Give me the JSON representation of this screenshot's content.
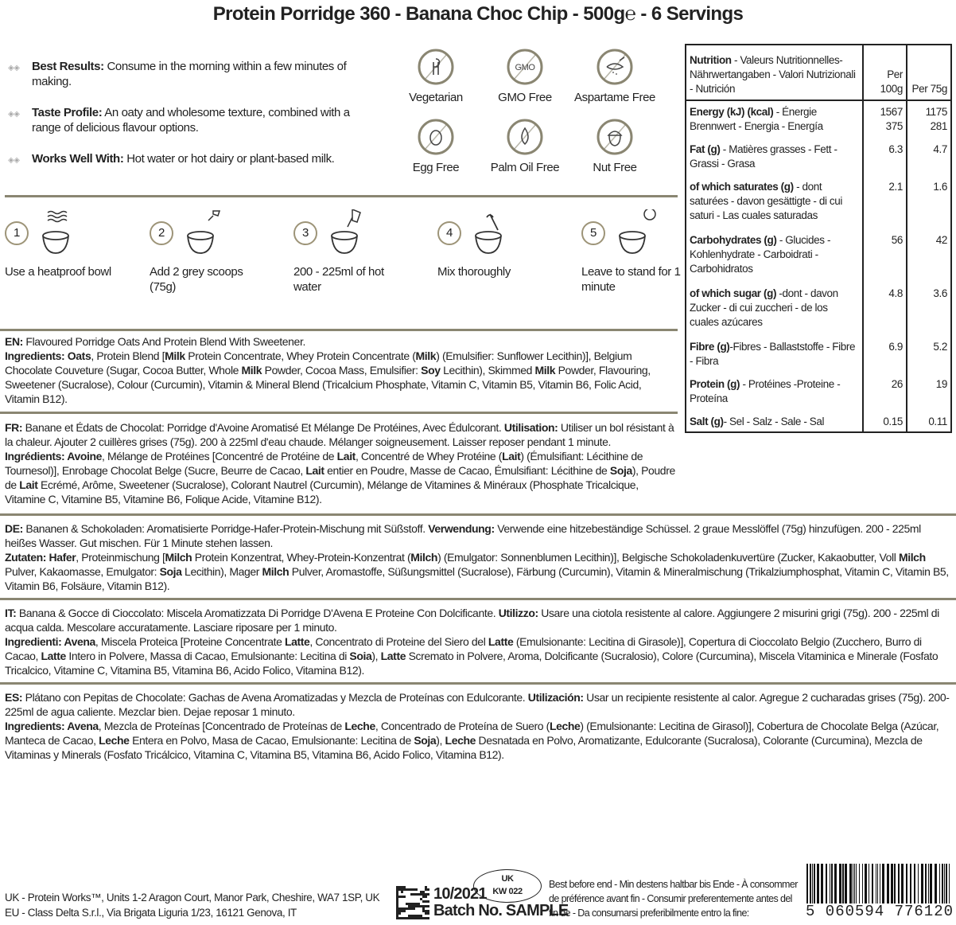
{
  "title": "Protein Porridge 360 - Banana Choc Chip - 500g℮ - 6 Servings",
  "features": [
    {
      "label": "Best Results:",
      "text": " Consume in the morning within a few minutes of making."
    },
    {
      "label": "Taste Profile:",
      "text": " An oaty and wholesome texture, combined with a range of delicious flavour options."
    },
    {
      "label": "Works Well With:",
      "text": " Hot water or hot dairy or plant-based milk."
    }
  ],
  "badges": [
    {
      "label": "Vegetarian",
      "icon": "vegetarian-icon"
    },
    {
      "label": "GMO Free",
      "icon": "gmo-free-icon",
      "glyph": "GMO"
    },
    {
      "label": "Aspartame Free",
      "icon": "aspartame-free-icon"
    },
    {
      "label": "Egg Free",
      "icon": "egg-free-icon"
    },
    {
      "label": "Palm Oil Free",
      "icon": "palm-oil-free-icon"
    },
    {
      "label": "Nut Free",
      "icon": "nut-free-icon"
    }
  ],
  "steps": [
    {
      "num": "1",
      "label": "Use a heatproof bowl"
    },
    {
      "num": "2",
      "label": "Add 2 grey scoops (75g)"
    },
    {
      "num": "3",
      "label": "200 - 225ml of hot water"
    },
    {
      "num": "4",
      "label": "Mix thoroughly"
    },
    {
      "num": "5",
      "label": "Leave to stand for 1 minute"
    }
  ],
  "ingredients": {
    "en": [
      [
        "EN:",
        1
      ],
      [
        " Flavoured Porridge Oats And Protein Blend With Sweetener.",
        0
      ],
      [
        "\n",
        0
      ],
      [
        "Ingredients: Oats",
        1
      ],
      [
        ", Protein Blend [",
        0
      ],
      [
        "Milk",
        1
      ],
      [
        " Protein Concentrate, Whey Protein Concentrate (",
        0
      ],
      [
        "Milk",
        1
      ],
      [
        ") (Emulsifier: Sunflower Lecithin)], Belgium Chocolate Couveture (Sugar, Cocoa Butter, Whole ",
        0
      ],
      [
        "Milk",
        1
      ],
      [
        " Powder, Cocoa Mass, Emulsifier: ",
        0
      ],
      [
        "Soy",
        1
      ],
      [
        " Lecithin), Skimmed ",
        0
      ],
      [
        "Milk",
        1
      ],
      [
        " Powder, Flavouring, Sweetener (Sucralose), Colour (Curcumin), Vitamin & Mineral Blend (Tricalcium Phosphate, Vitamin C, Vitamin B5, Vitamin B6, Folic Acid, Vitamin B12).",
        0
      ]
    ],
    "fr": [
      [
        "FR:",
        1
      ],
      [
        " Banane et Édats de Chocolat: Porridge d'Avoine Aromatisé Et Mélange De Protéines, Avec Édulcorant. ",
        0
      ],
      [
        "Utilisation:",
        1
      ],
      [
        " Utiliser un bol résistant à la chaleur. Ajouter 2 cuillères grises (75g). 200 à 225ml d'eau chaude. Mélanger soigneusement. Laisser reposer pendant 1 minute.",
        0
      ],
      [
        "\n",
        0
      ],
      [
        "Ingrédients: Avoine",
        1
      ],
      [
        ", Mélange de Protéines [Concentré de Protéine de ",
        0
      ],
      [
        "Lait",
        1
      ],
      [
        ", Concentré de Whey Protéine (",
        0
      ],
      [
        "Lait",
        1
      ],
      [
        ") (Émulsifiant: Lécithine de Tournesol)], Enrobage Chocolat Belge (Sucre, Beurre de Cacao, ",
        0
      ],
      [
        "Lait",
        1
      ],
      [
        " entier en Poudre, Masse de Cacao, Émulsifiant: Lécithine de ",
        0
      ],
      [
        "Soja",
        1
      ],
      [
        "), Poudre de ",
        0
      ],
      [
        "Lait",
        1
      ],
      [
        " Ecrémé, Arôme, Sweetener (Sucralose), Colorant Nautrel (Curcumin), Mélange de Vitamines & Minéraux (Phosphate Tricalcique, Vitamine C, Vitamine B5, Vitamine B6, Folique Acide, Vitamine B12).",
        0
      ]
    ],
    "de": [
      [
        "DE:",
        1
      ],
      [
        " Bananen & Schokoladen: Aromatisierte Porridge-Hafer-Protein-Mischung mit Süßstoff. ",
        0
      ],
      [
        "Verwendung:",
        1
      ],
      [
        " Verwende eine hitzebeständige Schüssel. 2 graue Messlöffel (75g) hinzufügen. 200 - 225ml heißes Wasser. Gut mischen. Für 1 Minute stehen lassen.",
        0
      ],
      [
        "\n",
        0
      ],
      [
        "Zutaten: Hafer",
        1
      ],
      [
        ", Proteinmischung [",
        0
      ],
      [
        "Milch",
        1
      ],
      [
        " Protein Konzentrat, Whey-Protein-Konzentrat (",
        0
      ],
      [
        "Milch",
        1
      ],
      [
        ") (Emulgator: Sonnenblumen Lecithin)], Belgische Schokoladenkuvertüre (Zucker, Kakaobutter, Voll ",
        0
      ],
      [
        "Milch",
        1
      ],
      [
        " Pulver, Kakaomasse, Emulgator: ",
        0
      ],
      [
        "Soja",
        1
      ],
      [
        " Lecithin), Mager ",
        0
      ],
      [
        "Milch",
        1
      ],
      [
        " Pulver, Aromastoffe, Süßungsmittel (Sucralose), Färbung (Curcumin), Vitamin & Mineralmischung (Trikalziumphosphat, Vitamin C, Vitamin B5, Vitamin B6, Folsäure, Vitamin B12).",
        0
      ]
    ],
    "it": [
      [
        "IT:",
        1
      ],
      [
        " Banana & Gocce di Cioccolato: Miscela Aromatizzata Di Porridge D'Avena E Proteine Con Dolcificante. ",
        0
      ],
      [
        "Utilizzo:",
        1
      ],
      [
        " Usare una ciotola resistente al calore. Aggiungere 2 misurini grigi (75g). 200 - 225ml di acqua calda. Mescolare accuratamente. Lasciare riposare per 1 minuto.",
        0
      ],
      [
        "\n",
        0
      ],
      [
        "Ingredienti: Avena",
        1
      ],
      [
        ", Miscela Proteica [Proteine Concentrate ",
        0
      ],
      [
        "Latte",
        1
      ],
      [
        ", Concentrato di Proteine del Siero del ",
        0
      ],
      [
        "Latte",
        1
      ],
      [
        " (Emulsionante: Lecitina di Girasole)], Copertura di Cioccolato Belgio (Zucchero, Burro di Cacao, ",
        0
      ],
      [
        "Latte",
        1
      ],
      [
        " Intero in Polvere, Massa di Cacao, Emulsionante: Lecitina di ",
        0
      ],
      [
        "Soia",
        1
      ],
      [
        "), ",
        0
      ],
      [
        "Latte",
        1
      ],
      [
        " Scremato in Polvere, Aroma, Dolcificante (Sucralosio), Colore (Curcumina), Miscela Vitaminica e Minerale (Fosfato Tricalcico, Vitamine C, Vitamina B5, Vitamina B6, Acido Folico, Vitamina B12).",
        0
      ]
    ],
    "es": [
      [
        "ES:",
        1
      ],
      [
        " Plátano con Pepitas de Chocolate: Gachas de Avena Aromatizadas y Mezcla de Proteínas con Edulcorante. ",
        0
      ],
      [
        "Utilización:",
        1
      ],
      [
        " Usar un recipiente resistente al calor. Agregue 2 cucharadas grises (75g). 200-225ml de agua caliente. Mezclar bien. Dejae reposar 1 minuto.",
        0
      ],
      [
        "\n",
        0
      ],
      [
        "Ingredients: Avena",
        1
      ],
      [
        ", Mezcla de Proteínas [Concentrado de Proteínas de ",
        0
      ],
      [
        "Leche",
        1
      ],
      [
        ", Concentrado de Proteína de Suero (",
        0
      ],
      [
        "Leche",
        1
      ],
      [
        ") (Emulsionante: Lecitina de Girasol)], Cobertura de Chocolate Belga (Azúcar, Manteca de Cacao, ",
        0
      ],
      [
        "Leche",
        1
      ],
      [
        " Entera en Polvo, Masa de Cacao, Emulsionante: Lecitina de ",
        0
      ],
      [
        "Soja",
        1
      ],
      [
        "), ",
        0
      ],
      [
        "Leche",
        1
      ],
      [
        " Desnatada en Polvo, Aromatizante, Edulcorante (Sucralosa), Colorante (Curcumina), Mezcla de Vitaminas y Minerals (Fosfato Tricálcico, Vitamina C, Vitamina B5, Vitamina B6, Acido Folico, Vitamina B12).",
        0
      ]
    ]
  },
  "nutrition": {
    "header_bold": "Nutrition",
    "header_rest": " - Valeurs Nutritionnelles-Nährwertangaben - Valori Nutrizionali - Nutrición",
    "col1": "Per 100g",
    "col2": "Per 75g",
    "rows": [
      {
        "bold": "Energy (kJ) (kcal)",
        "rest": " - Énergie Brennwert - Energia - Energía",
        "v1": "1567\n375",
        "v2": "1175\n281"
      },
      {
        "bold": "Fat (g)",
        "rest": " - Matières grasses - Fett - Grassi - Grasa",
        "v1": "6.3",
        "v2": "4.7"
      },
      {
        "bold": "of which saturates (g)",
        "rest": " - dont saturées - davon gesättigte - di cui saturi - Las cuales saturadas",
        "v1": "2.1",
        "v2": "1.6"
      },
      {
        "bold": "Carbohydrates (g)",
        "rest": " - Glucides - Kohlenhydrate - Carboidrati - Carbohidratos",
        "v1": "56",
        "v2": "42"
      },
      {
        "bold": "of which sugar (g)",
        "rest": " -dont - davon Zucker - di cui zuccheri - de los cuales azúcares",
        "v1": "4.8",
        "v2": "3.6"
      },
      {
        "bold": "Fibre (g)",
        "rest": "-Fibres - Ballaststoffe - Fibre - Fibra",
        "v1": "6.9",
        "v2": "5.2"
      },
      {
        "bold": "Protein (g)",
        "rest": " - Protéines -Proteine - Proteína",
        "v1": "26",
        "v2": "19"
      },
      {
        "bold": "Salt (g)",
        "rest": "- Sel - Salz - Sale - Sal",
        "v1": "0.15",
        "v2": "0.11"
      }
    ]
  },
  "footer": {
    "address_uk": "UK - Protein Works™, Units 1-2 Aragon Court, Manor Park, Cheshire, WA7 1SP, UK",
    "address_eu": "EU - Class Delta S.r.l., Via Brigata Liguria 1/23, 16121 Genova, IT",
    "date": "10/2021",
    "batch": "Batch No. SAMPLE",
    "mark_top": "UK",
    "mark_bottom": "KW 022",
    "best_before": "Best before end - Min destens haltbar bis Ende - À consommer de préférence avant fin - Consumir preferentemente antes del fin de - Da consumarsi preferibilmente entro la fine:",
    "barcode": "5 060594 776120"
  },
  "colors": {
    "accent": "#8a8672",
    "text": "#222222"
  }
}
